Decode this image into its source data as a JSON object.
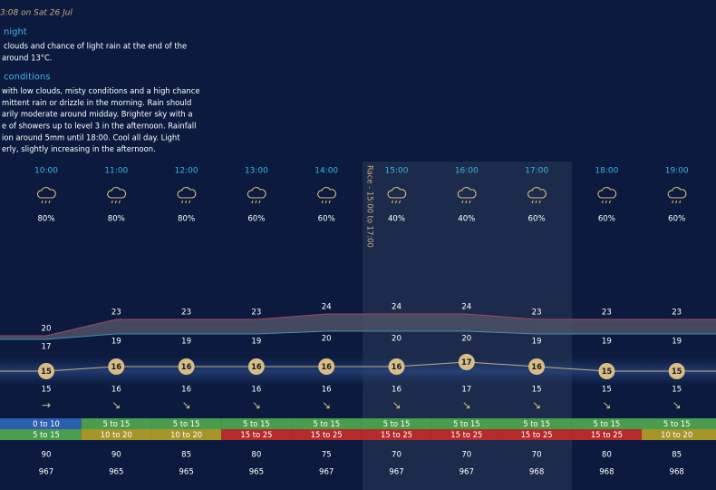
{
  "header": {
    "updated": "3:08 on Sat 26 Jul"
  },
  "sections": [
    {
      "title": "night",
      "lines": [
        "clouds and chance of light rain at the end of the",
        "around 13°C."
      ]
    },
    {
      "title": "conditions",
      "lines": [
        "with low clouds, misty conditions and a high chance",
        "mittent rain or drizzle in the morning. Rain should",
        "arily moderate around midday. Brighter sky with a",
        "e of showers up to level 3 in the afternoon. Rainfall",
        "ion around 5mm until 18:00. Cool all day. Light",
        "erly, slightly increasing in the afternoon."
      ]
    }
  ],
  "race_label": "Race - 15:00 to 17:00",
  "hours": [
    {
      "time": "10:00",
      "rain": "80%",
      "high": 20,
      "low": 17,
      "feels": 15,
      "temp": 15,
      "arrow": "→",
      "wind": "0 to 10",
      "wind_color": "#2c5fae",
      "gust": "5 to 15",
      "gust_color": "#4a9d4c",
      "humidity": 90,
      "pressure": 967
    },
    {
      "time": "11:00",
      "rain": "80%",
      "high": 23,
      "low": 19,
      "feels": 16,
      "temp": 16,
      "arrow": "↘",
      "wind": "5 to 15",
      "wind_color": "#4a9d4c",
      "gust": "10 to 20",
      "gust_color": "#a8952a",
      "humidity": 90,
      "pressure": 965
    },
    {
      "time": "12:00",
      "rain": "80%",
      "high": 23,
      "low": 19,
      "feels": 16,
      "temp": 16,
      "arrow": "↘",
      "wind": "5 to 15",
      "wind_color": "#4a9d4c",
      "gust": "10 to 20",
      "gust_color": "#a8952a",
      "humidity": 85,
      "pressure": 965
    },
    {
      "time": "13:00",
      "rain": "60%",
      "high": 23,
      "low": 19,
      "feels": 16,
      "temp": 16,
      "arrow": "↘",
      "wind": "5 to 15",
      "wind_color": "#4a9d4c",
      "gust": "15 to 25",
      "gust_color": "#b52a2a",
      "humidity": 80,
      "pressure": 965
    },
    {
      "time": "14:00",
      "rain": "60%",
      "high": 24,
      "low": 20,
      "feels": 16,
      "temp": 16,
      "arrow": "↘",
      "wind": "5 to 15",
      "wind_color": "#4a9d4c",
      "gust": "15 to 25",
      "gust_color": "#b52a2a",
      "humidity": 75,
      "pressure": 967
    },
    {
      "time": "15:00",
      "rain": "40%",
      "high": 24,
      "low": 20,
      "feels": 16,
      "temp": 16,
      "arrow": "↘",
      "wind": "5 to 15",
      "wind_color": "#4a9d4c",
      "gust": "15 to 25",
      "gust_color": "#b52a2a",
      "humidity": 70,
      "pressure": 967
    },
    {
      "time": "16:00",
      "rain": "40%",
      "high": 24,
      "low": 20,
      "feels": 17,
      "temp": 17,
      "arrow": "↘",
      "wind": "5 to 15",
      "wind_color": "#4a9d4c",
      "gust": "15 to 25",
      "gust_color": "#b52a2a",
      "humidity": 70,
      "pressure": 967
    },
    {
      "time": "17:00",
      "rain": "60%",
      "high": 23,
      "low": 19,
      "feels": 16,
      "temp": 15,
      "arrow": "↘",
      "wind": "5 to 15",
      "wind_color": "#4a9d4c",
      "gust": "15 to 25",
      "gust_color": "#b52a2a",
      "humidity": 70,
      "pressure": 968
    },
    {
      "time": "18:00",
      "rain": "60%",
      "high": 23,
      "low": 19,
      "feels": 15,
      "temp": 15,
      "arrow": "↘",
      "wind": "5 to 15",
      "wind_color": "#4a9d4c",
      "gust": "15 to 25",
      "gust_color": "#b52a2a",
      "humidity": 80,
      "pressure": 968
    },
    {
      "time": "19:00",
      "rain": "60%",
      "high": 23,
      "low": 19,
      "feels": 15,
      "temp": 15,
      "arrow": "↘",
      "wind": "5 to 15",
      "wind_color": "#4a9d4c",
      "gust": "10 to 20",
      "gust_color": "#a8952a",
      "humidity": 85,
      "pressure": 968
    }
  ]
}
